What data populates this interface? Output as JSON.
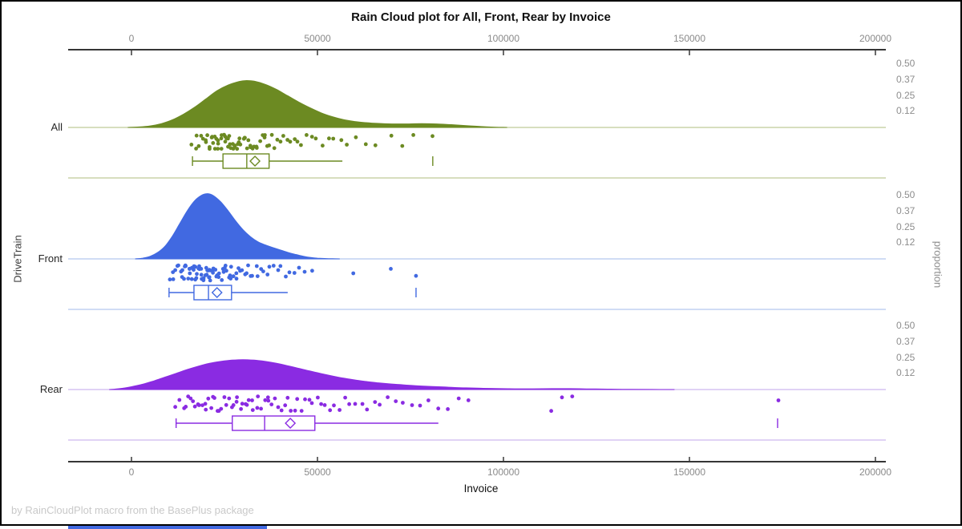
{
  "title": "Rain Cloud plot for All, Front, Rear by Invoice",
  "footer": "by RainCloudPlot macro from the BasePlus package",
  "x_axis": {
    "label": "Invoice",
    "tick_labels": [
      "0",
      "50000",
      "100000",
      "150000",
      "200000"
    ],
    "tick_values": [
      0,
      50000,
      100000,
      150000,
      200000
    ],
    "range": [
      -17000,
      203000
    ]
  },
  "y_axis_left": {
    "label": "DriveTrain",
    "categories": [
      "All",
      "Front",
      "Rear"
    ]
  },
  "y_axis_right": {
    "label": "proportion",
    "tick_labels": [
      "0.50",
      "0.37",
      "0.25",
      "0.12"
    ],
    "tick_values": [
      0.5,
      0.375,
      0.25,
      0.125
    ]
  },
  "colors": {
    "axis_line": "#1a1a1a",
    "tick_text": "#8a8a8a",
    "title_text": "#101010",
    "footer_text": "#c9c9c9",
    "bottom_bar": "#4169e1"
  },
  "chart_data": {
    "type": "raincloud",
    "title": "Rain Cloud plot for All, Front, Rear by Invoice",
    "xlabel": "Invoice",
    "ylabel_left": "DriveTrain",
    "ylabel_right": "proportion",
    "xlim": [
      -17000,
      203000
    ],
    "proportion_ticks": [
      0.125,
      0.25,
      0.375,
      0.5
    ],
    "groups": [
      {
        "label": "All",
        "color": "#6c8a22",
        "light_color": "#bfcb97",
        "box": {
          "low": 16400,
          "q1": 24600,
          "median": 31000,
          "q3": 37000,
          "high": 56700,
          "mean": 33200,
          "outliers": [
            81000
          ]
        },
        "density": [
          [
            -1000,
            0
          ],
          [
            2000,
            0.004
          ],
          [
            5000,
            0.012
          ],
          [
            8000,
            0.03
          ],
          [
            11000,
            0.06
          ],
          [
            14000,
            0.105
          ],
          [
            17000,
            0.16
          ],
          [
            20000,
            0.225
          ],
          [
            23000,
            0.29
          ],
          [
            26000,
            0.335
          ],
          [
            29000,
            0.363
          ],
          [
            31000,
            0.37
          ],
          [
            33000,
            0.365
          ],
          [
            36000,
            0.34
          ],
          [
            39000,
            0.3
          ],
          [
            42000,
            0.25
          ],
          [
            45000,
            0.2
          ],
          [
            48000,
            0.155
          ],
          [
            51000,
            0.115
          ],
          [
            54000,
            0.085
          ],
          [
            57000,
            0.062
          ],
          [
            60000,
            0.047
          ],
          [
            63000,
            0.038
          ],
          [
            66000,
            0.032
          ],
          [
            70000,
            0.028
          ],
          [
            74000,
            0.028
          ],
          [
            78000,
            0.03
          ],
          [
            82000,
            0.028
          ],
          [
            86000,
            0.022
          ],
          [
            90000,
            0.014
          ],
          [
            94000,
            0.007
          ],
          [
            98000,
            0.002
          ],
          [
            101000,
            0
          ]
        ],
        "points": [
          16400,
          17100,
          17800,
          18300,
          18800,
          19200,
          19700,
          20100,
          20400,
          20700,
          21000,
          21300,
          21600,
          21900,
          22200,
          22500,
          22800,
          23100,
          23300,
          23600,
          23900,
          24100,
          24400,
          24700,
          25000,
          25200,
          25500,
          25800,
          26000,
          26300,
          26600,
          26900,
          27100,
          27400,
          27700,
          28000,
          28300,
          28600,
          28900,
          29200,
          29500,
          29900,
          30200,
          30600,
          31000,
          31400,
          31800,
          32200,
          32600,
          33000,
          33500,
          34000,
          34500,
          35000,
          35500,
          36000,
          36600,
          37200,
          37800,
          38500,
          39200,
          40000,
          40800,
          41700,
          42600,
          43600,
          44700,
          45800,
          47000,
          48300,
          49700,
          51200,
          52800,
          54500,
          56300,
          58200,
          60500,
          63000,
          65500,
          70000,
          72500,
          76000,
          81000
        ]
      },
      {
        "label": "Front",
        "color": "#4169e1",
        "light_color": "#b3c6ef",
        "box": {
          "low": 10100,
          "q1": 16800,
          "median": 20700,
          "q3": 26900,
          "high": 42000,
          "mean": 23000,
          "outliers": [
            76500
          ]
        },
        "density": [
          [
            1000,
            0
          ],
          [
            3000,
            0.006
          ],
          [
            5000,
            0.02
          ],
          [
            7000,
            0.05
          ],
          [
            9000,
            0.1
          ],
          [
            11000,
            0.18
          ],
          [
            13000,
            0.28
          ],
          [
            15000,
            0.38
          ],
          [
            17000,
            0.46
          ],
          [
            19000,
            0.505
          ],
          [
            20500,
            0.515
          ],
          [
            22000,
            0.5
          ],
          [
            24000,
            0.45
          ],
          [
            26000,
            0.38
          ],
          [
            28000,
            0.3
          ],
          [
            30000,
            0.23
          ],
          [
            32000,
            0.175
          ],
          [
            34000,
            0.135
          ],
          [
            36000,
            0.11
          ],
          [
            38000,
            0.09
          ],
          [
            40000,
            0.07
          ],
          [
            42000,
            0.052
          ],
          [
            44000,
            0.036
          ],
          [
            46000,
            0.022
          ],
          [
            48000,
            0.012
          ],
          [
            50000,
            0.006
          ],
          [
            53000,
            0.002
          ],
          [
            56000,
            0
          ]
        ],
        "points": [
          10100,
          10900,
          11500,
          12000,
          12400,
          12800,
          13100,
          13400,
          13700,
          14000,
          14300,
          14500,
          14800,
          15000,
          15300,
          15500,
          15700,
          16000,
          16200,
          16400,
          16600,
          16900,
          17100,
          17300,
          17500,
          17700,
          17900,
          18100,
          18300,
          18500,
          18700,
          18900,
          19100,
          19300,
          19500,
          19700,
          19900,
          20100,
          20300,
          20500,
          20700,
          20900,
          21100,
          21300,
          21500,
          21800,
          22000,
          22200,
          22500,
          22700,
          23000,
          23200,
          23500,
          23800,
          24100,
          24400,
          24700,
          25000,
          25300,
          25600,
          26000,
          26300,
          26700,
          27100,
          27500,
          27900,
          28300,
          28800,
          29300,
          29800,
          30300,
          30900,
          31500,
          32100,
          32700,
          33400,
          34100,
          34800,
          35600,
          36400,
          37300,
          38200,
          39200,
          40300,
          41400,
          42600,
          43900,
          45300,
          46800,
          48400,
          59700,
          69400,
          76500
        ]
      },
      {
        "label": "Rear",
        "color": "#8a2be2",
        "light_color": "#ceb6ef",
        "box": {
          "low": 12000,
          "q1": 27100,
          "median": 35800,
          "q3": 49300,
          "high": 82500,
          "mean": 42700,
          "outliers": [
            173700
          ]
        },
        "density": [
          [
            -6000,
            0
          ],
          [
            -3000,
            0.008
          ],
          [
            0,
            0.022
          ],
          [
            3000,
            0.042
          ],
          [
            6000,
            0.068
          ],
          [
            9000,
            0.098
          ],
          [
            12000,
            0.128
          ],
          [
            15000,
            0.158
          ],
          [
            18000,
            0.185
          ],
          [
            21000,
            0.207
          ],
          [
            24000,
            0.222
          ],
          [
            27000,
            0.232
          ],
          [
            30000,
            0.236
          ],
          [
            33000,
            0.232
          ],
          [
            36000,
            0.222
          ],
          [
            39000,
            0.207
          ],
          [
            42000,
            0.188
          ],
          [
            45000,
            0.167
          ],
          [
            48000,
            0.146
          ],
          [
            51000,
            0.126
          ],
          [
            54000,
            0.107
          ],
          [
            57000,
            0.09
          ],
          [
            60000,
            0.076
          ],
          [
            63000,
            0.064
          ],
          [
            66000,
            0.054
          ],
          [
            69000,
            0.046
          ],
          [
            72000,
            0.039
          ],
          [
            75000,
            0.033
          ],
          [
            78000,
            0.028
          ],
          [
            81000,
            0.024
          ],
          [
            84000,
            0.02
          ],
          [
            87000,
            0.016
          ],
          [
            90000,
            0.013
          ],
          [
            94000,
            0.01
          ],
          [
            98000,
            0.008
          ],
          [
            103000,
            0.006
          ],
          [
            108000,
            0.006
          ],
          [
            113000,
            0.007
          ],
          [
            118000,
            0.007
          ],
          [
            123000,
            0.005
          ],
          [
            128000,
            0.003
          ],
          [
            134000,
            0.0015
          ],
          [
            140000,
            0.0005
          ],
          [
            146000,
            0
          ]
        ],
        "points": [
          12000,
          13100,
          13900,
          14600,
          15300,
          16000,
          16600,
          17200,
          17800,
          18400,
          19000,
          19600,
          20200,
          20800,
          21400,
          22000,
          22600,
          23200,
          23800,
          24400,
          25000,
          25600,
          26200,
          26800,
          27400,
          28000,
          28600,
          29200,
          29800,
          30400,
          31000,
          31600,
          32200,
          32900,
          33600,
          34300,
          35000,
          35700,
          36400,
          37100,
          37900,
          38700,
          39500,
          40300,
          41100,
          42000,
          42900,
          43800,
          44700,
          45700,
          46700,
          47700,
          48800,
          49900,
          51000,
          52200,
          53400,
          54700,
          56000,
          57400,
          58800,
          60300,
          61900,
          63500,
          65200,
          67000,
          68900,
          70900,
          73000,
          75200,
          77500,
          79900,
          82400,
          85000,
          87700,
          90500,
          113000,
          115500,
          118300,
          173700
        ]
      }
    ]
  }
}
